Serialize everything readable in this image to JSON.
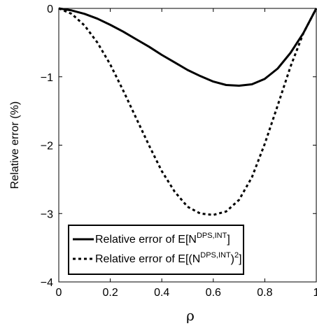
{
  "chart_data": {
    "type": "line",
    "title": "",
    "xlabel": "ρ",
    "ylabel": "Relative error (%)",
    "xlim": [
      0,
      1
    ],
    "ylim": [
      -4,
      0
    ],
    "xticks": [
      0,
      0.2,
      0.4,
      0.6,
      0.8,
      1
    ],
    "xtick_labels": [
      "0",
      "0.2",
      "0.4",
      "0.6",
      "0.8",
      "1"
    ],
    "yticks": [
      0,
      -1,
      -2,
      -3,
      -4
    ],
    "ytick_labels": [
      "0",
      "−1",
      "−2",
      "−3",
      "−4"
    ],
    "grid": false,
    "legend_position": "bottom",
    "series": [
      {
        "name": "Relative error of E[N^{DPS,INT}]",
        "legend": {
          "prefix": "Relative error of E[N",
          "sup": "DPS,INT",
          "suffix": "]"
        },
        "style": "solid",
        "color": "#000000",
        "x": [
          0,
          0.05,
          0.1,
          0.15,
          0.2,
          0.25,
          0.3,
          0.35,
          0.4,
          0.45,
          0.5,
          0.55,
          0.6,
          0.65,
          0.7,
          0.75,
          0.8,
          0.85,
          0.9,
          0.95,
          1.0
        ],
        "y": [
          0,
          -0.03,
          -0.08,
          -0.15,
          -0.24,
          -0.34,
          -0.45,
          -0.56,
          -0.68,
          -0.79,
          -0.9,
          -0.99,
          -1.07,
          -1.12,
          -1.13,
          -1.11,
          -1.03,
          -0.88,
          -0.65,
          -0.36,
          0
        ]
      },
      {
        "name": "Relative error of E[(N^{DPS,INT})^2]",
        "legend": {
          "prefix": "Relative error of E[(N",
          "sup": "DPS,INT",
          "mid": ")",
          "sup2": "2",
          "suffix": "]"
        },
        "style": "dotted",
        "color": "#000000",
        "x": [
          0,
          0.05,
          0.1,
          0.15,
          0.2,
          0.25,
          0.3,
          0.35,
          0.4,
          0.45,
          0.5,
          0.55,
          0.6,
          0.65,
          0.7,
          0.75,
          0.8,
          0.85,
          0.9,
          0.95,
          1.0
        ],
        "y": [
          0,
          -0.08,
          -0.25,
          -0.5,
          -0.82,
          -1.2,
          -1.6,
          -2.0,
          -2.38,
          -2.68,
          -2.9,
          -3.0,
          -3.02,
          -2.97,
          -2.8,
          -2.47,
          -1.98,
          -1.42,
          -0.85,
          -0.36,
          0
        ]
      }
    ]
  }
}
